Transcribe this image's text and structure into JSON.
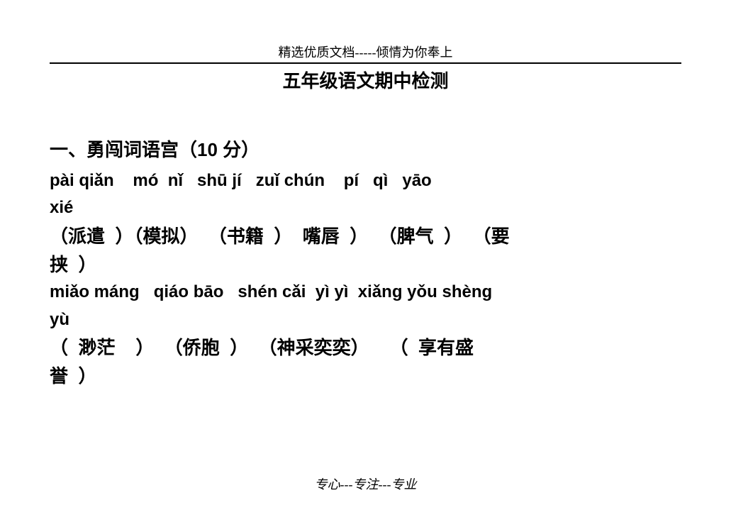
{
  "header": {
    "top_text": "精选优质文档-----倾情为你奉上",
    "title": "五年级语文期中检测"
  },
  "section1": {
    "heading": "一、勇闯词语宫（10 分）",
    "pinyin_line1": "pài qiǎn    mó  nǐ   shū jí   zuǐ chún    pí   qì   yāo",
    "pinyin_line1b": "xié",
    "hanzi_line1": "（派遣  ）（模拟）  （书籍  ）  嘴唇  ）  （脾气  ）  （要",
    "hanzi_line1b": "挟  ）",
    "pinyin_line2": "miǎo máng   qiáo bāo   shén cǎi  yì yì  xiǎng yǒu shèng",
    "pinyin_line2b": "yù",
    "hanzi_line2": "（  渺茫    ）  （侨胞  ）  （神采奕奕）    （  享有盛",
    "hanzi_line2b": "誉  ）"
  },
  "footer": {
    "text": "专心---专注---专业"
  }
}
